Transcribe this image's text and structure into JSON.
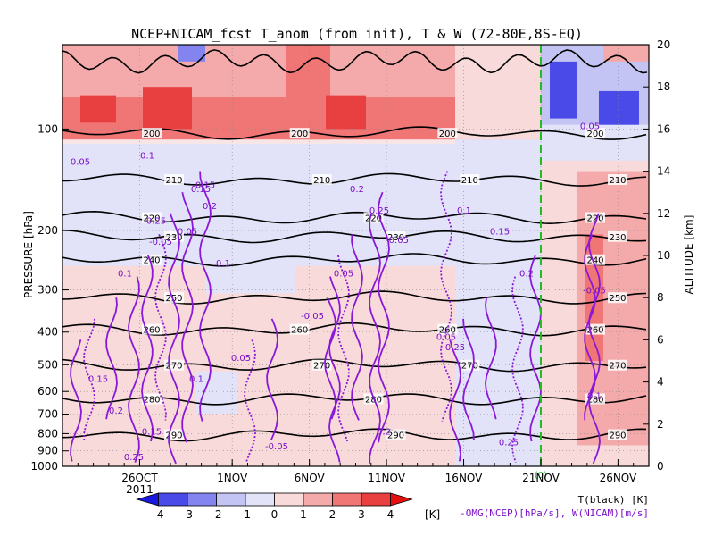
{
  "chart_data": {
    "type": "heatmap",
    "title": "NCEP+NICAM_fcst T_anom (from init), T & W  (72-80E,8S-EQ)",
    "ylabel_left": "PRESSURE [hPa]",
    "ylabel_right": "ALTITUDE [km]",
    "x_axis": {
      "type": "date",
      "range": [
        "2011-10-21",
        "2011-11-28"
      ],
      "year_label": "2011",
      "ticks": [
        "26OCT",
        "1NOV",
        "6NOV",
        "11NOV",
        "16NOV",
        "21NOV",
        "26NOV"
      ]
    },
    "pressure_ticks": [
      "100",
      "200",
      "300",
      "400",
      "500",
      "600",
      "700",
      "800",
      "900",
      "1000"
    ],
    "altitude_ticks": [
      "0",
      "2",
      "4",
      "6",
      "8",
      "10",
      "12",
      "14",
      "16",
      "18",
      "20"
    ],
    "forecast_init": "21NOV",
    "forecast_init_marker": "(0)",
    "colorbar": {
      "ticks": [
        "-4",
        "-3",
        "-2",
        "-1",
        "0",
        "1",
        "2",
        "3",
        "4"
      ],
      "unit": "[K]",
      "colors": [
        "#1818e0",
        "#4a4ae8",
        "#8484f0",
        "#c4c4f4",
        "#e2e2f8",
        "#f8dada",
        "#f4aaaa",
        "#f07676",
        "#e84040",
        "#e41010"
      ]
    },
    "legend_temperature": "T(black) [K]",
    "legend_w": "-OMG(NCEP)[hPa/s], W(NICAM)[m/s]",
    "temperature_contours": [
      {
        "level": 200,
        "alt_km": 15.8,
        "labels": [
          "200",
          "200",
          "200",
          "200"
        ]
      },
      {
        "level": 210,
        "alt_km": 13.6,
        "labels": [
          "210",
          "210",
          "210",
          "210"
        ]
      },
      {
        "level": 220,
        "alt_km": 11.8,
        "labels": [
          "220",
          "220",
          "220"
        ]
      },
      {
        "level": 230,
        "alt_km": 10.9,
        "labels": [
          "230",
          "230",
          "230"
        ]
      },
      {
        "level": 240,
        "alt_km": 9.8,
        "labels": [
          "240",
          "240"
        ]
      },
      {
        "level": 250,
        "alt_km": 8.0,
        "labels": [
          "250",
          "250"
        ]
      },
      {
        "level": 260,
        "alt_km": 6.5,
        "labels": [
          "260",
          "260",
          "260",
          "260"
        ]
      },
      {
        "level": 270,
        "alt_km": 4.8,
        "labels": [
          "270",
          "270",
          "270",
          "270"
        ]
      },
      {
        "level": 280,
        "alt_km": 3.2,
        "labels": [
          "280",
          "280",
          "280"
        ]
      },
      {
        "level": 290,
        "alt_km": 1.5,
        "labels": [
          "290",
          "290",
          "290"
        ]
      }
    ],
    "w_contour_labels": [
      "0.05",
      "0.1",
      "0.15",
      "0.2",
      "0.25",
      "-0.05"
    ],
    "anomaly_regions": [
      {
        "period": "2011-10-21..2011-11-18",
        "alt_km": [
          16,
          20
        ],
        "anom_K": 3
      },
      {
        "period": "2011-10-21..2011-11-18",
        "alt_km": [
          13,
          15
        ],
        "anom_K": -1
      },
      {
        "period": "2011-11-22..2011-11-28",
        "alt_km": [
          15.5,
          20
        ],
        "anom_K": -3
      },
      {
        "period": "2011-11-22..2011-11-28",
        "alt_km": [
          0,
          14
        ],
        "anom_K": 2
      }
    ]
  }
}
